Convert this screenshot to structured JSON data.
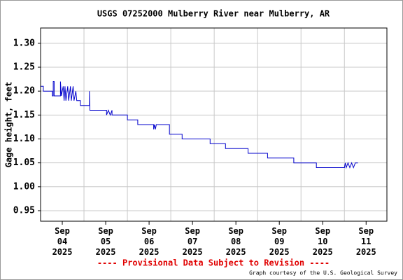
{
  "chart_data": {
    "type": "line",
    "title": "USGS 07252000 Mulberry River near Mulberry, AR",
    "ylabel": "Gage height, feet",
    "footer": "---- Provisional Data Subject to Revision ----",
    "credit": "Graph courtesy of the U.S. Geological Survey",
    "color": "#0000cc",
    "x": [
      "2025-09-03T12:00",
      "2025-09-03T13:30",
      "2025-09-03T13:30",
      "2025-09-03T18:30",
      "2025-09-03T18:30",
      "2025-09-03T19:00",
      "2025-09-03T19:00",
      "2025-09-03T19:30",
      "2025-09-03T19:30",
      "2025-09-03T23:00",
      "2025-09-03T23:00",
      "2025-09-03T23:30",
      "2025-09-04T00:30",
      "2025-09-04T01:00",
      "2025-09-04T01:30",
      "2025-09-04T02:00",
      "2025-09-04T03:00",
      "2025-09-04T03:30",
      "2025-09-04T04:30",
      "2025-09-04T05:00",
      "2025-09-04T06:00",
      "2025-09-04T06:30",
      "2025-09-04T07:30",
      "2025-09-04T08:00",
      "2025-09-04T10:00",
      "2025-09-04T10:00",
      "2025-09-04T15:00",
      "2025-09-04T15:00",
      "2025-09-04T15:15",
      "2025-09-05T00:30",
      "2025-09-05T00:30",
      "2025-09-05T01:30",
      "2025-09-05T02:30",
      "2025-09-05T03:30",
      "2025-09-05T03:30",
      "2025-09-05T12:00",
      "2025-09-05T12:00",
      "2025-09-05T17:45",
      "2025-09-05T17:45",
      "2025-09-06T02:30",
      "2025-09-06T02:30",
      "2025-09-06T03:00",
      "2025-09-06T03:30",
      "2025-09-06T04:00",
      "2025-09-06T11:15",
      "2025-09-06T11:15",
      "2025-09-06T18:15",
      "2025-09-06T18:15",
      "2025-09-07T09:45",
      "2025-09-07T09:45",
      "2025-09-07T18:15",
      "2025-09-07T18:15",
      "2025-09-08T06:45",
      "2025-09-08T06:45",
      "2025-09-08T17:30",
      "2025-09-08T17:30",
      "2025-09-09T08:00",
      "2025-09-09T08:00",
      "2025-09-09T20:30",
      "2025-09-09T20:30",
      "2025-09-10T12:00",
      "2025-09-10T12:30",
      "2025-09-10T13:00",
      "2025-09-10T14:00",
      "2025-09-10T15:00",
      "2025-09-10T16:00",
      "2025-09-10T17:00",
      "2025-09-10T18:00",
      "2025-09-10T19:30"
    ],
    "values": [
      1.21,
      1.21,
      1.2,
      1.2,
      1.19,
      1.19,
      1.22,
      1.22,
      1.19,
      1.19,
      1.22,
      1.19,
      1.21,
      1.18,
      1.21,
      1.18,
      1.21,
      1.18,
      1.21,
      1.18,
      1.21,
      1.18,
      1.2,
      1.18,
      1.18,
      1.17,
      1.17,
      1.2,
      1.16,
      1.16,
      1.15,
      1.16,
      1.15,
      1.16,
      1.15,
      1.15,
      1.14,
      1.14,
      1.13,
      1.13,
      1.12,
      1.13,
      1.12,
      1.13,
      1.13,
      1.11,
      1.11,
      1.1,
      1.1,
      1.09,
      1.09,
      1.08,
      1.08,
      1.07,
      1.07,
      1.06,
      1.06,
      1.05,
      1.05,
      1.04,
      1.04,
      1.05,
      1.04,
      1.05,
      1.04,
      1.05,
      1.04,
      1.05,
      1.05
    ],
    "xlim": [
      "2025-09-03T12:00",
      "2025-09-11T11:30"
    ],
    "xticks": [
      {
        "value": "2025-09-04T00:00",
        "label": "Sep\n04\n2025"
      },
      {
        "value": "2025-09-05T00:00",
        "label": "Sep\n05\n2025"
      },
      {
        "value": "2025-09-06T00:00",
        "label": "Sep\n06\n2025"
      },
      {
        "value": "2025-09-07T00:00",
        "label": "Sep\n07\n2025"
      },
      {
        "value": "2025-09-08T00:00",
        "label": "Sep\n08\n2025"
      },
      {
        "value": "2025-09-09T00:00",
        "label": "Sep\n09\n2025"
      },
      {
        "value": "2025-09-10T00:00",
        "label": "Sep\n10\n2025"
      },
      {
        "value": "2025-09-11T00:00",
        "label": "Sep\n11\n2025"
      }
    ],
    "xgrid": [
      "2025-09-04T12:00",
      "2025-09-05T12:00",
      "2025-09-06T12:00",
      "2025-09-07T12:00",
      "2025-09-08T12:00",
      "2025-09-09T12:00",
      "2025-09-10T12:00"
    ],
    "ylim": [
      0.928,
      1.332
    ],
    "yticks": [
      0.95,
      {
        "value": 1.0,
        "label": "1.00"
      },
      1.05,
      {
        "value": 1.1,
        "label": "1.10"
      },
      1.15,
      {
        "value": 1.2,
        "label": "1.20"
      },
      1.25,
      {
        "value": 1.3,
        "label": "1.30"
      }
    ],
    "grid": true
  }
}
